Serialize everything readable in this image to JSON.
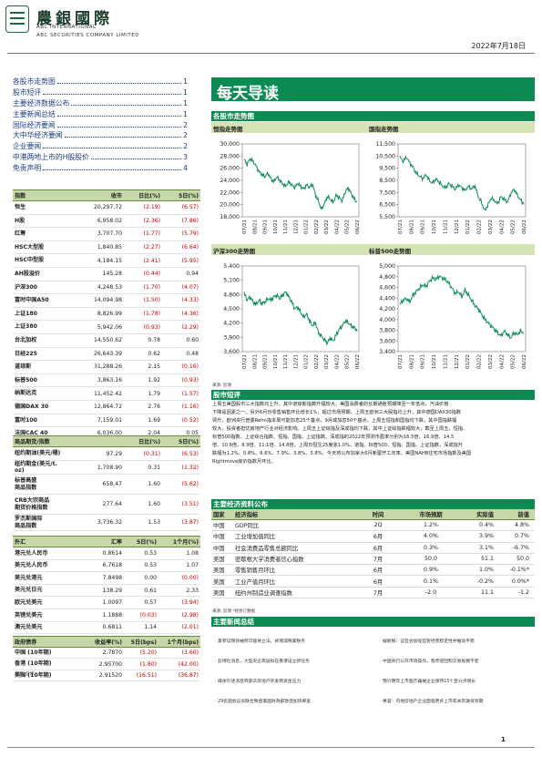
{
  "header": {
    "brand_cn": "農銀國際",
    "brand_en_1": "ABC INTERNATIONAL",
    "brand_en_2": "ABC SECURITIES COMPANY LIMITED",
    "date": "2022年7月18日"
  },
  "toc": [
    {
      "label": "各股市走势图",
      "page": "1"
    },
    {
      "label": "股市短评",
      "page": "1"
    },
    {
      "label": "主要经济数据公布",
      "page": "1"
    },
    {
      "label": "主要新闻总结",
      "page": "1"
    },
    {
      "label": "国际经济要闻",
      "page": "2"
    },
    {
      "label": "大中华经济要闻",
      "page": "2"
    },
    {
      "label": "企业要闻",
      "page": "2"
    },
    {
      "label": "中港两地上市的H股股价",
      "page": "3"
    },
    {
      "label": "免责声明",
      "page": "4"
    }
  ],
  "indices": {
    "headers": [
      "指数",
      "收市",
      "日比(%)",
      "5日(%)"
    ],
    "rows": [
      [
        "恒生",
        "20,297.72",
        "(2.19)",
        "(6.57)"
      ],
      [
        "H股",
        "6,958.02",
        "(2.36)",
        "(7.86)"
      ],
      [
        "红筹",
        "3,707.70",
        "(1.77)",
        "(5.79)"
      ],
      [
        "HSC大型股",
        "1,840.85",
        "(2.27)",
        "(6.64)"
      ],
      [
        "HSC中型股",
        "4,184.15",
        "(2.41)",
        "(5.95)"
      ],
      [
        "AH股溢价",
        "145.28",
        "(0.44)",
        "0.94"
      ],
      [
        "沪深300",
        "4,248.53",
        "(1.70)",
        "(4.07)"
      ],
      [
        "富时中国A50",
        "14,094.98",
        "(1.50)",
        "(4.33)"
      ],
      [
        "上证180",
        "8,826.99",
        "(1.78)",
        "(4.36)"
      ],
      [
        "上证380",
        "5,942.06",
        "(0.93)",
        "(2.29)"
      ],
      [
        "台北加权",
        "14,550.62",
        "0.78",
        "0.60"
      ],
      [
        "日经225",
        "26,643.39",
        "0.62",
        "0.48"
      ],
      [
        "道琼斯",
        "31,288.26",
        "2.15",
        "(0.16)"
      ],
      [
        "标普500",
        "3,863.16",
        "1.92",
        "(0.93)"
      ],
      [
        "纳斯达克",
        "11,452.42",
        "1.79",
        "(1.57)"
      ],
      [
        "德国DAX 30",
        "12,864.72",
        "2.76",
        "(1.16)"
      ],
      [
        "富时100",
        "7,159.01",
        "1.69",
        "(0.52)"
      ],
      [
        "法国CAC 40",
        "6,036.00",
        "2.04",
        "0.05"
      ]
    ]
  },
  "commodities": {
    "headers": [
      "商品期货/指数",
      "",
      "日比(%)",
      "5日(%)"
    ],
    "rows": [
      [
        "纽约期油(美元/桶)",
        "97.29",
        "(0.31)",
        "(6.53)"
      ],
      [
        "纽约期金(美元/t. oz)",
        "1,708.90",
        "0.31",
        "(1.32)"
      ],
      [
        "标普高盛\n商品指数",
        "658.47",
        "1.60",
        "(5.62)"
      ],
      [
        "CRB大宗商品\n期货价格指数",
        "277.64",
        "1.60",
        "(3.51)"
      ],
      [
        "罗杰斯国际\n商品指数",
        "3,736.32",
        "1.53",
        "(3.87)"
      ]
    ]
  },
  "fx": {
    "headers": [
      "外汇",
      "汇率",
      "5日(%)",
      "1个月(%)"
    ],
    "rows": [
      [
        "港元兑人民币",
        "0.8614",
        "0.53",
        "1.08"
      ],
      [
        "美元兑人民币",
        "6.7618",
        "0.53",
        "1.07"
      ],
      [
        "美元兑港元",
        "7.8498",
        "0.00",
        "(0.00)"
      ],
      [
        "美元兑日元",
        "138.29",
        "0.61",
        "2.33"
      ],
      [
        "欧元兑美元",
        "1.0097",
        "0.57",
        "(3.94)"
      ],
      [
        "英镑兑美元",
        "1.1888",
        "(0.03)",
        "(2.98)"
      ],
      [
        "澳元兑美元",
        "0.6811",
        "1.14",
        "(2.01)"
      ]
    ]
  },
  "bonds": {
    "headers": [
      "政府债券",
      "收益率(%)",
      "5日(bps)",
      "1个月(bps)"
    ],
    "rows": [
      [
        "中国 (10年期)",
        "2.7870",
        "(5.20)",
        "(3.60)"
      ],
      [
        "香港 (10年期)",
        "2.95700",
        "(1.80)",
        "(42.00)"
      ],
      [
        "美国 (10年期)",
        "2.91520",
        "(16.51)",
        "(36.87)"
      ]
    ],
    "source": "来源: 彭博"
  },
  "main_title": "每天导读",
  "charts_section": "各股市走势图",
  "charts": [
    {
      "title": "恒指走势图",
      "yticks": [
        "30,000",
        "28,000",
        "26,000",
        "24,000",
        "22,000",
        "20,000",
        "18,000"
      ]
    },
    {
      "title": "国指走势图",
      "yticks": [
        "11,500",
        "10,500",
        "9,500",
        "8,500",
        "7,500",
        "6,500",
        "5,500"
      ]
    },
    {
      "title": "沪深300走势图",
      "yticks": [
        "5,400",
        "5,100",
        "4,800",
        "4,500",
        "4,200",
        "3,900",
        "3,600"
      ]
    },
    {
      "title": "标普500走势图",
      "yticks": [
        "5,000",
        "4,800",
        "4,600",
        "4,400",
        "4,200",
        "4,000",
        "3,800",
        "3,600",
        "3,400"
      ]
    }
  ],
  "chart_xticks": [
    "07/21",
    "08/21",
    "09/21",
    "10/21",
    "11/21",
    "12/21",
    "01/22",
    "02/22",
    "03/22",
    "04/22",
    "05/22",
    "06/22"
  ],
  "chart_source": "来源: 彭博",
  "market_section": "股市短评",
  "market_text": [
    "上周五美国股市三大指数均上升，其中道琼斯指数升幅较大，美国消费者的长期通胀预期降至一年低点，汽油价格",
    "下降是因素之一。另外6月份零售销售环比增长1%，超过市场预期。上周五欧洲三大股指均上升，其中德国DAX30指数",
    "领升，欧洲央行管委Rehn指本周可能加息25个基点，9月或加息50个基点。上周五恒指和国指均下跌，其中国指跌幅",
    "较大，投资者担忧房地产行业对经济影响。上周五上证综指及深成指均下跌，其中上证综指跌幅较大，截至上周五，恒指、",
    "标普500指数、上证综合指数、恒指、国指、上证指数、深成指的2022年预测市盈率分别为16.5倍、16.9倍、14.5",
    "倍、10.6倍、8.9倍、11.1倍、14.8倍。上周日恒生25度涨1.0%，道指、标普500、恒指、国指、上证指数，深成指升",
    "跌幅为1.2%、0.8%、6.6%、7.9%、3.8%、3.8%。今天将公布加拿大6月新屋开工年率、美国NAHB住宅市场指数及美国",
    "Rightmove房价指数月环比。"
  ],
  "econ": {
    "section": "主要经济资料公布",
    "headers": [
      "国家",
      "经济指标",
      "时间",
      "市场预期",
      "实际值",
      "前值"
    ],
    "rows": [
      [
        "中国",
        "GDP同比",
        "2Q",
        "1.2%",
        "0.4%",
        "4.8%"
      ],
      [
        "中国",
        "工业增加值同比",
        "6月",
        "4.0%",
        "3.9%",
        "0.7%"
      ],
      [
        "中国",
        "社会消费品零售总额同比",
        "6月",
        "0.3%",
        "3.1%",
        "-6.7%"
      ],
      [
        "美国",
        "密歇根大学消费者信心指数",
        "7月",
        "50.0",
        "51.1",
        "50.0"
      ],
      [
        "美国",
        "零售销售月环比",
        "6月",
        "0.9%",
        "1.0%",
        "-0.1%*"
      ],
      [
        "美国",
        "工业产值月环比",
        "6月",
        "0.1%",
        "-0.2%",
        "0.0%*"
      ],
      [
        "美国",
        "纽约州制造业调查指数",
        "7月",
        "-2.0",
        "11.1",
        "-1.2"
      ]
    ],
    "source": "来源: 彭博  *经修订数据"
  },
  "news": {
    "section": "主要新闻总结",
    "items": [
      "· 美参议院领袖称可能将立法，将增减税美税务",
      "· 据新报：证监会加强监管经营稳定性并推动平稳",
      "· 彭博社消息，大型央企高层拟在香港设立新任务",
      "· 中国央行公开市场操作，暂停逆回购交易规模不变",
      "· 媒体引述消息称豪华房地产开发商资金压力",
      "· 预计明年上市医疗器械企业保持15个百分点增长",
      "· 29名国会议员联合致函美国财政部敦促加快审查",
      "· 惠誉：内地房地产企业面临更多上市或本年融资到期"
    ]
  },
  "page_number": "1"
}
